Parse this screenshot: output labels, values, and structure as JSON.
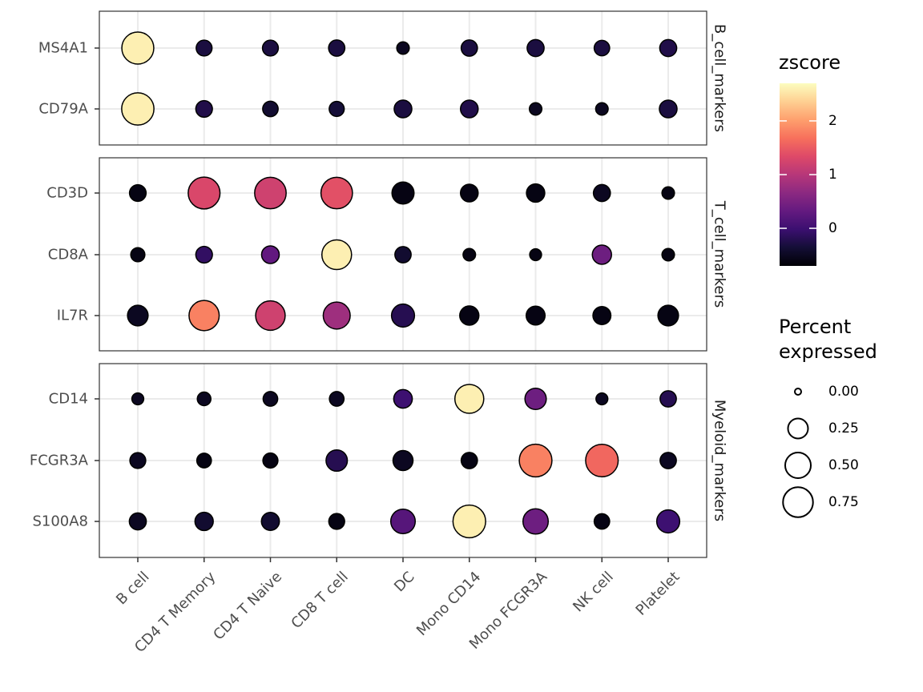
{
  "chart_data": {
    "type": "dot",
    "x_categories": [
      "B cell",
      "CD4 T Memory",
      "CD4 T Naive",
      "CD8 T cell",
      "DC",
      "Mono CD14",
      "Mono FCGR3A",
      "NK cell",
      "Platelet"
    ],
    "panels": [
      {
        "strip": "B_cell_markers",
        "genes": [
          "MS4A1",
          "CD79A"
        ],
        "percent": [
          [
            0.88,
            0.12,
            0.12,
            0.13,
            0.05,
            0.13,
            0.15,
            0.11,
            0.15
          ],
          [
            0.9,
            0.14,
            0.11,
            0.1,
            0.17,
            0.17,
            0.05,
            0.05,
            0.17
          ]
        ],
        "zscore": [
          [
            2.6,
            -0.3,
            -0.3,
            -0.3,
            -0.5,
            -0.3,
            -0.3,
            -0.3,
            -0.25
          ],
          [
            2.6,
            -0.25,
            -0.4,
            -0.35,
            -0.3,
            -0.25,
            -0.5,
            -0.5,
            -0.3
          ]
        ]
      },
      {
        "strip": "T_cell_markers",
        "genes": [
          "CD3D",
          "CD8A",
          "IL7R"
        ],
        "percent": [
          [
            0.14,
            0.87,
            0.85,
            0.85,
            0.33,
            0.17,
            0.19,
            0.15,
            0.05
          ],
          [
            0.08,
            0.14,
            0.17,
            0.73,
            0.13,
            0.05,
            0.04,
            0.22,
            0.05
          ],
          [
            0.27,
            0.76,
            0.72,
            0.57,
            0.37,
            0.22,
            0.21,
            0.18,
            0.27
          ]
        ],
        "zscore": [
          [
            -0.6,
            1.3,
            1.2,
            1.4,
            -0.6,
            -0.6,
            -0.6,
            -0.5,
            -0.6
          ],
          [
            -0.6,
            -0.1,
            0.3,
            2.6,
            -0.4,
            -0.6,
            -0.6,
            0.4,
            -0.6
          ],
          [
            -0.5,
            1.8,
            1.2,
            0.8,
            -0.2,
            -0.6,
            -0.6,
            -0.6,
            -0.6
          ]
        ]
      },
      {
        "strip": "Myeloid_markers",
        "genes": [
          "CD14",
          "FCGR3A",
          "S100A8"
        ],
        "percent": [
          [
            0.04,
            0.07,
            0.09,
            0.09,
            0.2,
            0.68,
            0.3,
            0.04,
            0.13
          ],
          [
            0.12,
            0.09,
            0.1,
            0.3,
            0.25,
            0.13,
            0.93,
            0.92,
            0.13
          ],
          [
            0.15,
            0.19,
            0.18,
            0.12,
            0.44,
            0.93,
            0.48,
            0.11,
            0.37
          ]
        ],
        "zscore": [
          [
            -0.5,
            -0.5,
            -0.5,
            -0.5,
            0.0,
            2.6,
            0.4,
            -0.5,
            -0.2
          ],
          [
            -0.5,
            -0.6,
            -0.6,
            -0.2,
            -0.5,
            -0.6,
            1.8,
            1.6,
            -0.5
          ],
          [
            -0.5,
            -0.4,
            -0.4,
            -0.6,
            0.2,
            2.6,
            0.4,
            -0.6,
            0.0
          ]
        ]
      }
    ],
    "color_legend": {
      "title": "zscore",
      "range": [
        -0.7,
        2.7
      ],
      "ticks": [
        0,
        1,
        2
      ],
      "tick_labels": [
        "0",
        "1",
        "2"
      ],
      "palette": [
        "#000004",
        "#140e36",
        "#3b0f70",
        "#641a80",
        "#8c2981",
        "#b73779",
        "#de4968",
        "#f7705c",
        "#fe9f6d",
        "#fecf92",
        "#fcfdbf"
      ]
    },
    "size_legend": {
      "title_lines": [
        "Percent",
        "expressed"
      ],
      "values": [
        0.0,
        0.25,
        0.5,
        0.75
      ],
      "labels": [
        "0.00",
        "0.25",
        "0.50",
        "0.75"
      ]
    },
    "grid": true,
    "legend_position": "right"
  }
}
